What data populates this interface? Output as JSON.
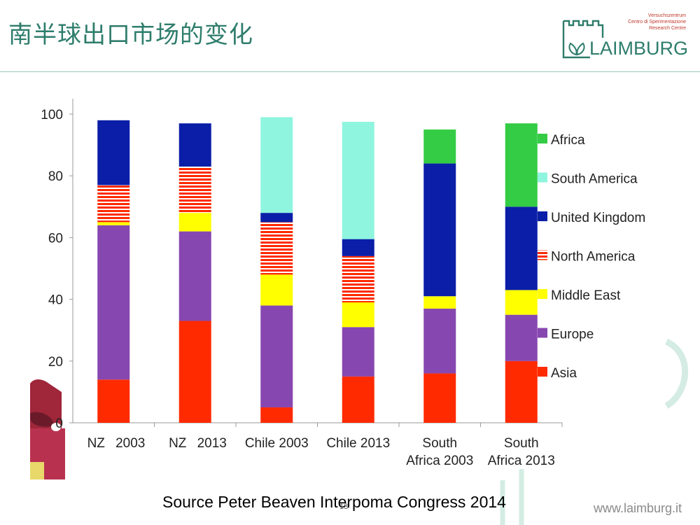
{
  "slide": {
    "title": "南半球出口市场的变化",
    "source": "Source Peter Beaven Interpoma Congress 2014",
    "page_number": "13",
    "website": "www.laimburg.it"
  },
  "logo": {
    "subtitle_lines": [
      "Versuchszentrum",
      "Centro di Sperimentazione",
      "Research Centre"
    ],
    "name": "LAIMBURG",
    "color": "#2e7d6c"
  },
  "chart_data": {
    "type": "bar",
    "stacked": true,
    "categories": [
      [
        "NZ",
        "2003"
      ],
      [
        "NZ",
        "2013"
      ],
      [
        "Chile 2003"
      ],
      [
        "Chile 2013"
      ],
      [
        "South",
        "Africa 2003"
      ],
      [
        "South",
        "Africa 2013"
      ]
    ],
    "ylim": [
      0,
      100
    ],
    "yticks": [
      "0",
      "20",
      "40",
      "60",
      "80",
      "100"
    ],
    "legend_position": "right",
    "series": [
      {
        "name": "Asia",
        "color": "#ff2a00",
        "pattern": "solid",
        "values": [
          14,
          33,
          5,
          15,
          16,
          20
        ]
      },
      {
        "name": "Europe",
        "color": "#8747b0",
        "pattern": "solid",
        "values": [
          50,
          29,
          33,
          16,
          21,
          15
        ]
      },
      {
        "name": "Middle East",
        "color": "#ffff00",
        "pattern": "solid",
        "values": [
          1,
          6,
          10,
          8,
          4,
          8
        ]
      },
      {
        "name": "North America",
        "color": "#ff2a00",
        "pattern": "stripes",
        "values": [
          12,
          15,
          17,
          15,
          0,
          0
        ]
      },
      {
        "name": "United Kingdom",
        "color": "#0a1ea8",
        "pattern": "solid",
        "values": [
          21,
          14,
          3,
          5.5,
          43,
          27
        ]
      },
      {
        "name": "South America",
        "color": "#8ff5df",
        "pattern": "solid",
        "values": [
          0,
          0,
          31,
          38,
          0,
          0
        ]
      },
      {
        "name": "Africa",
        "color": "#33cc44",
        "pattern": "solid",
        "values": [
          0,
          0,
          0,
          0,
          11,
          27
        ]
      }
    ],
    "legend_order": [
      "Africa",
      "South America",
      "United Kingdom",
      "North America",
      "Middle East",
      "Europe",
      "Asia"
    ]
  }
}
